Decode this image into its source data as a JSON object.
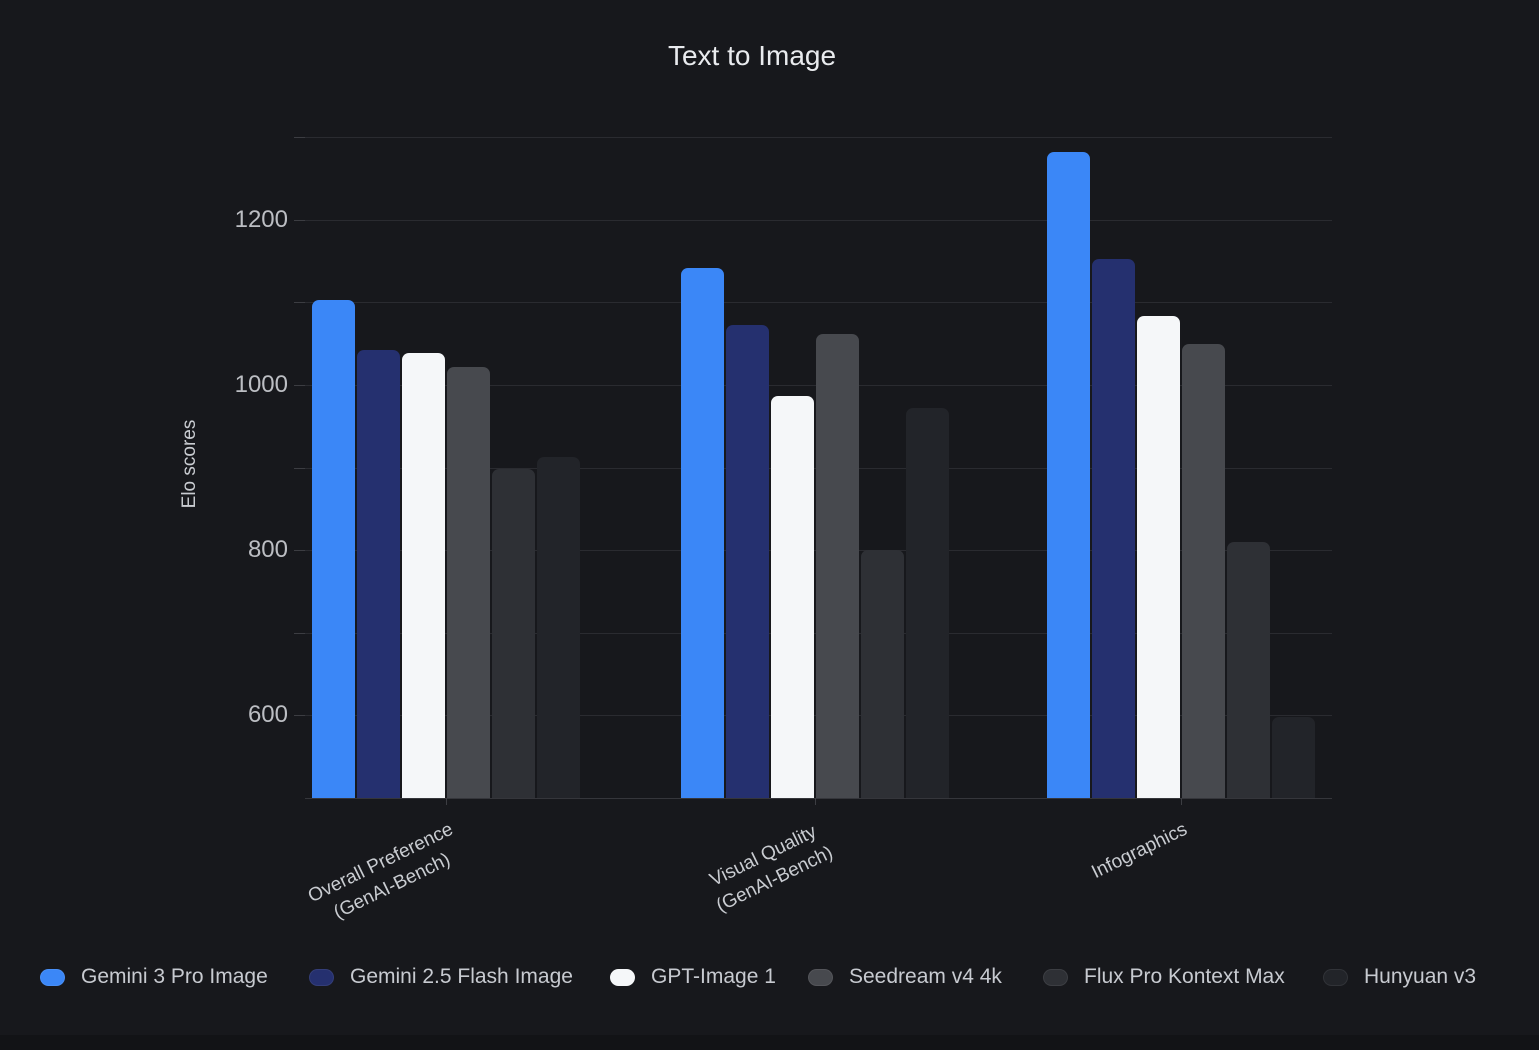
{
  "title": "Text to Image",
  "chart_data": {
    "type": "bar",
    "title": "Text to Image",
    "xlabel": "",
    "ylabel": "Elo scores",
    "categories": [
      {
        "lines": [
          "Overall Preference",
          "(GenAI-Bench)"
        ]
      },
      {
        "lines": [
          "Visual Quality",
          "(GenAI-Bench)"
        ]
      },
      {
        "lines": [
          "Infographics"
        ]
      }
    ],
    "series": [
      {
        "name": "Gemini 3 Pro Image",
        "color": "#3b87f7",
        "values": [
          1103,
          1141,
          1282
        ]
      },
      {
        "name": "Gemini 2.5 Flash Image",
        "color": "#25306f",
        "values": [
          1042,
          1073,
          1152
        ]
      },
      {
        "name": "GPT-Image 1",
        "color": "#f5f7f9",
        "values": [
          1038,
          987,
          1083
        ]
      },
      {
        "name": "Seedream v4 4k",
        "color": "#47494e",
        "values": [
          1022,
          1061,
          1049
        ]
      },
      {
        "name": "Flux Pro Kontext Max",
        "color": "#2e3035",
        "values": [
          898,
          800,
          810
        ]
      },
      {
        "name": "Hunyuan v3",
        "color": "#222429",
        "values": [
          913,
          972,
          598
        ]
      }
    ],
    "ylim": [
      500,
      1300
    ],
    "ytick_labels": [
      600,
      800,
      1000,
      1200
    ],
    "gridline_step": 100,
    "grid": true,
    "legend_position": "bottom"
  },
  "colors": {
    "background": "#17181c",
    "footer_strip": "#121316",
    "gridline": "#2a2b30",
    "axis_tick": "#3c3d42",
    "baseline": "#35363b",
    "title_text": "#e9ebee",
    "tick_text": "#bcbec3",
    "legend_text": "#c7cad0",
    "category_text": "#c9ccd1"
  }
}
